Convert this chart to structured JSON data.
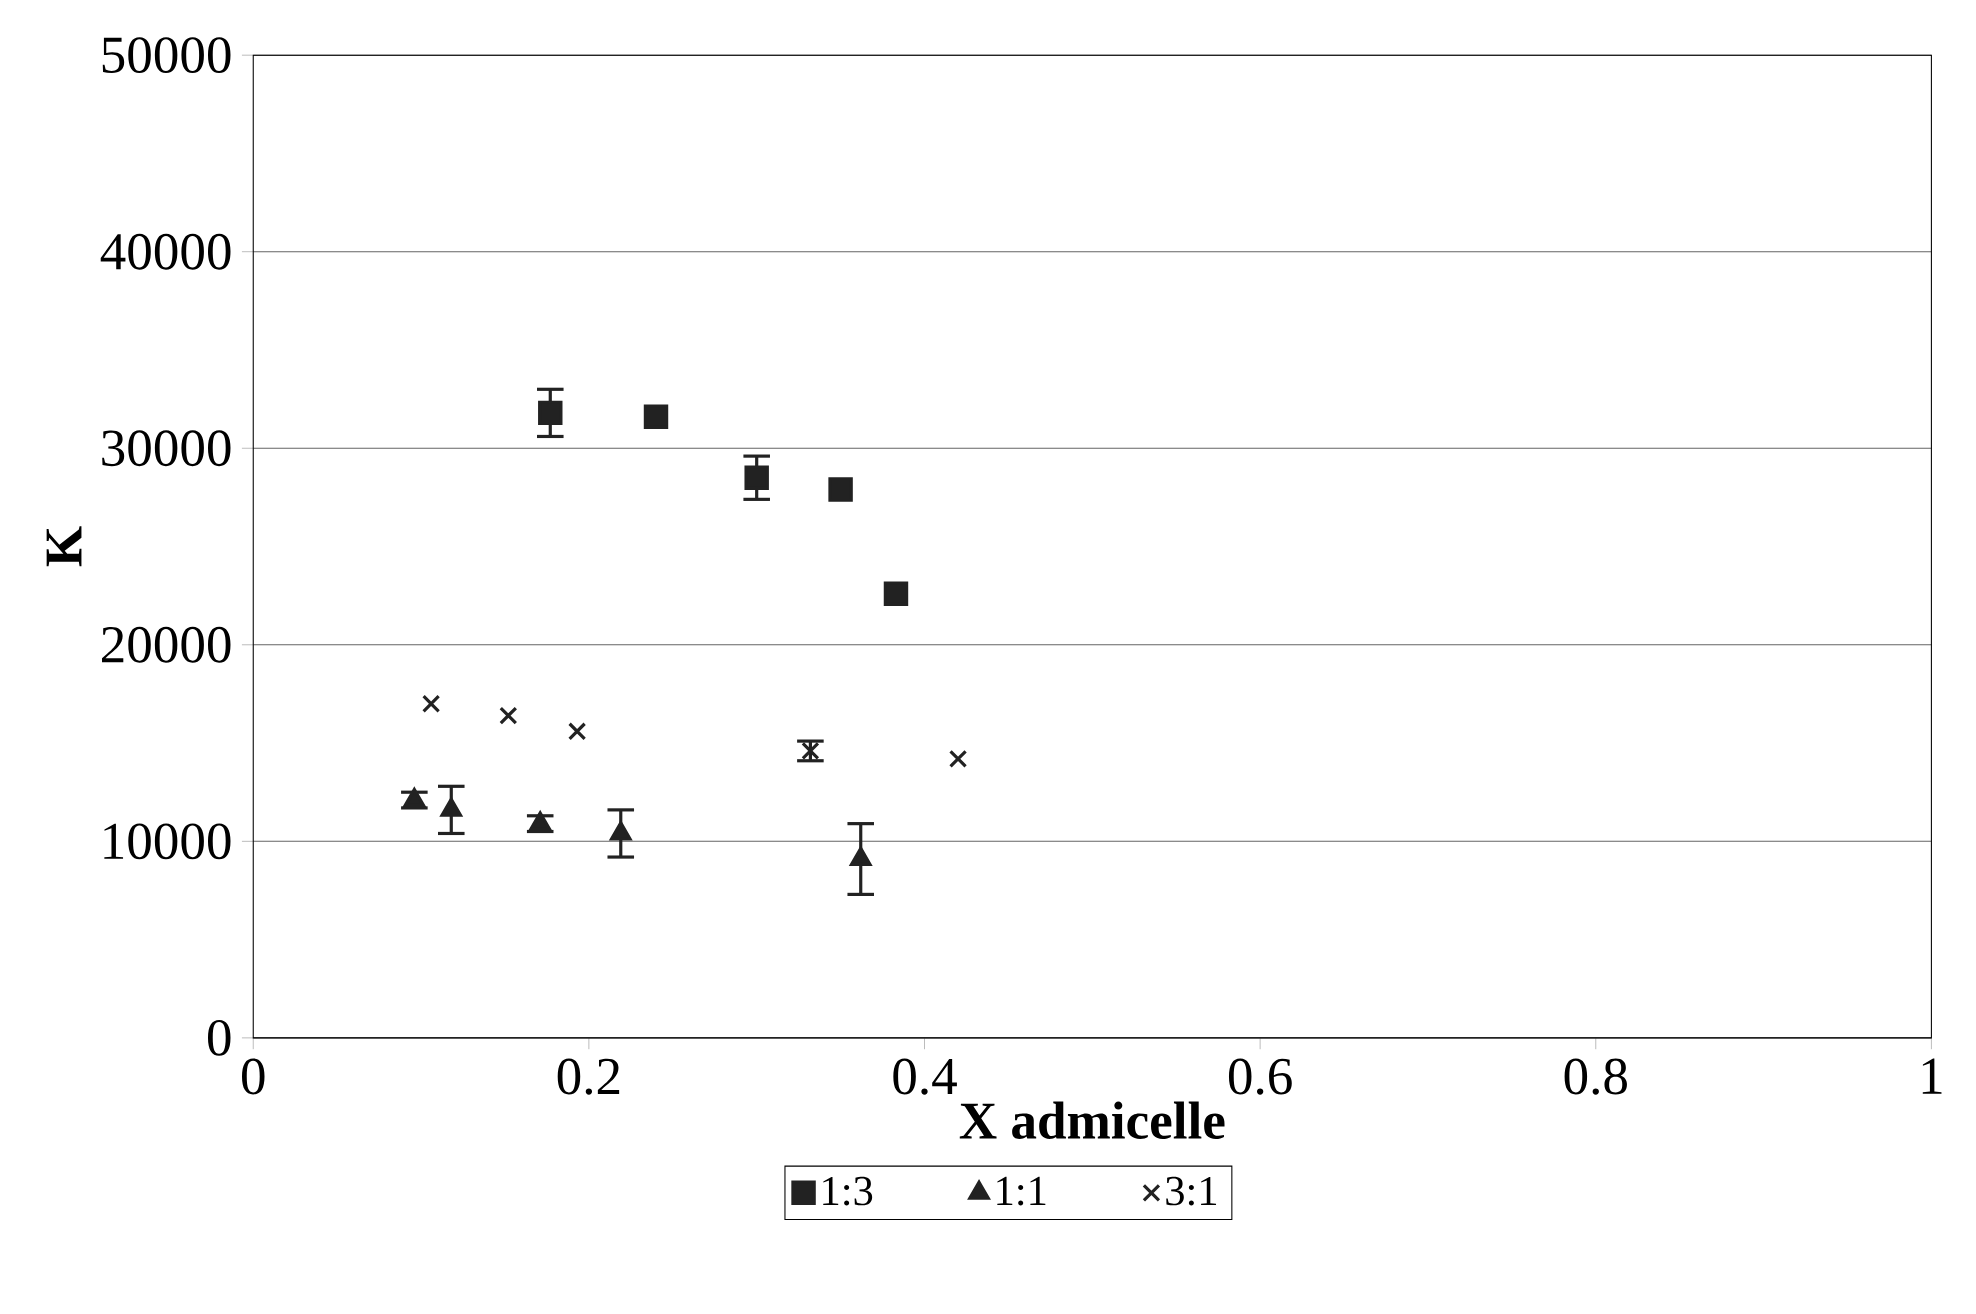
{
  "chart_data": {
    "type": "scatter",
    "xlabel": "X admicelle",
    "ylabel": "K",
    "xlim": [
      0,
      1
    ],
    "xticks": [
      0,
      0.2,
      0.4,
      0.6,
      0.8,
      1
    ],
    "ylim": [
      0,
      50000
    ],
    "yticks": [
      0,
      10000,
      20000,
      30000,
      40000,
      50000
    ],
    "grid": "y",
    "legend": "bottom",
    "series": [
      {
        "name": "1:3",
        "color": "#222222",
        "marker": "square",
        "x": [
          0.177,
          0.24,
          0.3,
          0.35,
          0.383
        ],
        "values": [
          31800,
          31600,
          28500,
          27900,
          22600
        ],
        "errors": [
          1200,
          null,
          1100,
          null,
          null
        ]
      },
      {
        "name": "1:1",
        "color": "#222222",
        "marker": "triangle",
        "x": [
          0.096,
          0.118,
          0.171,
          0.219,
          0.362
        ],
        "values": [
          12100,
          11600,
          10900,
          10400,
          9100
        ],
        "errors": [
          400,
          1200,
          400,
          1200,
          1800
        ]
      },
      {
        "name": "3:1",
        "color": "#222222",
        "marker": "cross",
        "x": [
          0.106,
          0.152,
          0.193,
          0.332,
          0.42
        ],
        "values": [
          17000,
          16400,
          15600,
          14600,
          14200
        ],
        "errors": [
          null,
          null,
          null,
          500,
          null
        ]
      }
    ]
  }
}
